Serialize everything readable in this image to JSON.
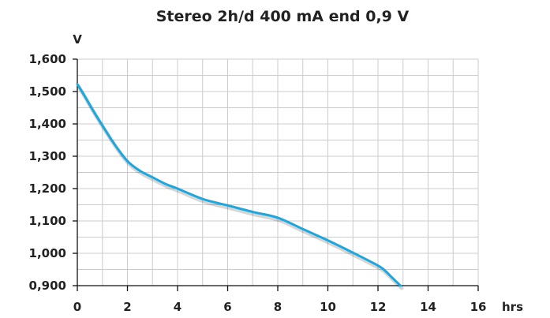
{
  "chart_data": {
    "type": "line",
    "title": "Stereo 2h/d 400 mA end 0,9 V",
    "xlabel": "hrs",
    "ylabel": "V",
    "xlim": [
      0,
      16
    ],
    "ylim": [
      0.9,
      1.6
    ],
    "xticks": [
      0,
      2,
      4,
      6,
      8,
      10,
      12,
      14,
      16
    ],
    "xtick_labels": [
      "0",
      "2",
      "4",
      "6",
      "8",
      "10",
      "12",
      "14",
      "16"
    ],
    "yticks": [
      0.9,
      1.0,
      1.1,
      1.2,
      1.3,
      1.4,
      1.5,
      1.6
    ],
    "ytick_labels": [
      "0,900",
      "1,000",
      "1,100",
      "1,200",
      "1,300",
      "1,400",
      "1,500",
      "1,600"
    ],
    "grid": true,
    "color": "#1ea7dc",
    "series": [
      {
        "x": [
          0,
          0.3,
          0.6,
          1.0,
          1.5,
          2.0,
          2.5,
          3.0,
          3.5,
          4.0,
          5.0,
          6.0,
          7.0,
          8.0,
          9.0,
          10.0,
          11.0,
          12.0,
          12.3,
          12.6,
          12.9
        ],
        "values": [
          1.523,
          1.485,
          1.445,
          1.395,
          1.335,
          1.285,
          1.255,
          1.235,
          1.215,
          1.2,
          1.168,
          1.148,
          1.128,
          1.11,
          1.075,
          1.04,
          1.002,
          0.962,
          0.945,
          0.922,
          0.9
        ]
      }
    ]
  }
}
